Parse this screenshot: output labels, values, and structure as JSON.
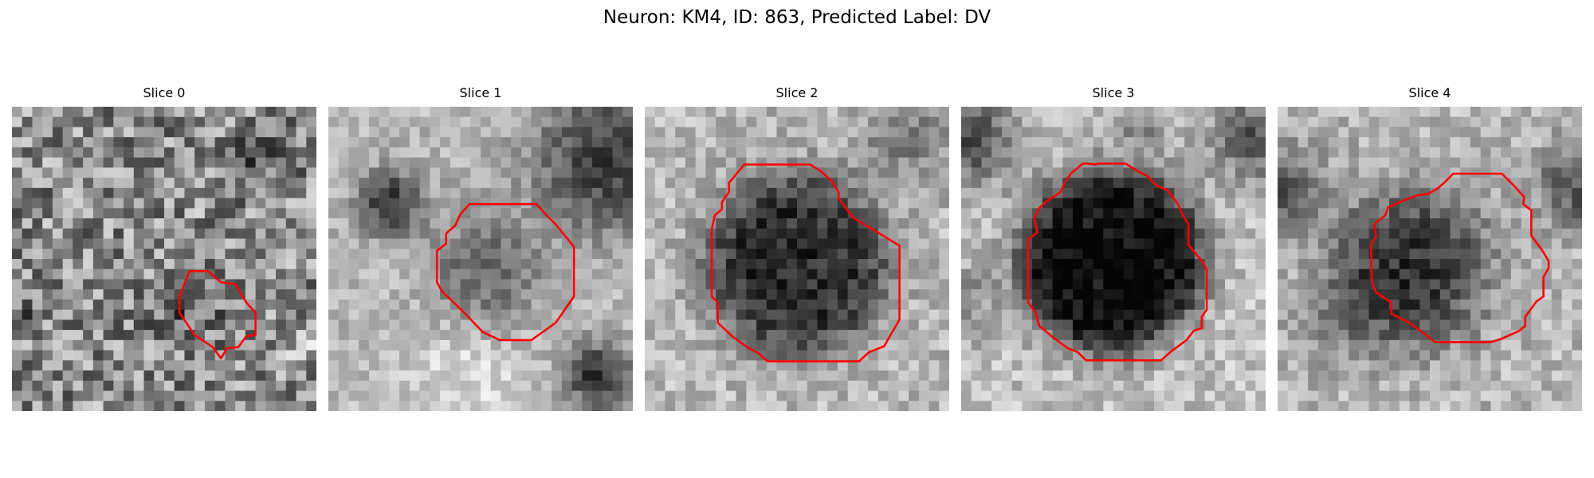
{
  "figure": {
    "suptitle": "Neuron: KM4, ID: 863, Predicted Label: DV"
  },
  "colors": {
    "contour": "#ff0000",
    "background": "#ffffff"
  },
  "panels": [
    {
      "title": "Slice 0"
    },
    {
      "title": "Slice 1"
    },
    {
      "title": "Slice 2"
    },
    {
      "title": "Slice 3"
    },
    {
      "title": "Slice 4"
    }
  ]
}
